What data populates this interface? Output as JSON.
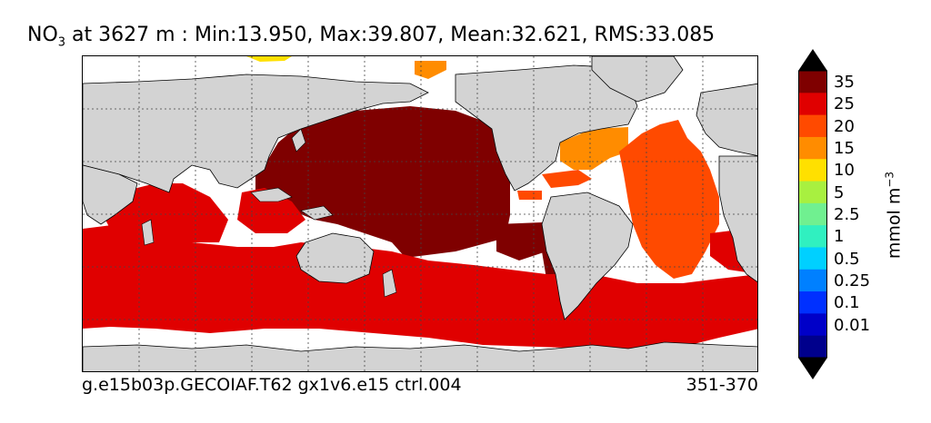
{
  "title": {
    "species": "NO",
    "species_sub": "3",
    "rest": " at 3627 m : Min:13.950, Max:39.807, Mean:32.621, RMS:33.085"
  },
  "footer": {
    "left": "g.e15b03p.GECOIAF.T62 gx1v6.e15 ctrl.004",
    "right": "351-370"
  },
  "colorbar": {
    "units_main": "mmol m",
    "units_sup": "−3",
    "labels": [
      "35",
      "25",
      "20",
      "15",
      "10",
      "5",
      "2.5",
      "1",
      "0.5",
      "0.25",
      "0.1",
      "0.01"
    ],
    "colors": [
      "#7f0000",
      "#e00000",
      "#ff4a00",
      "#ff8c00",
      "#ffe000",
      "#a8f040",
      "#70f090",
      "#30f0c0",
      "#00d0ff",
      "#0080ff",
      "#0030ff",
      "#0000c8",
      "#00008c"
    ],
    "over_color": "#000000",
    "under_color": "#000000"
  },
  "map_colors": {
    "land": "#d3d3d3",
    "ocean_deep_pacific": "#7f0000",
    "ocean_south": "#e00000",
    "ocean_atlantic": "#ff4a00",
    "ocean_north_atlantic": "#ff8c00",
    "arctic_yellow": "#ffe000",
    "missing": "#ffffff"
  }
}
